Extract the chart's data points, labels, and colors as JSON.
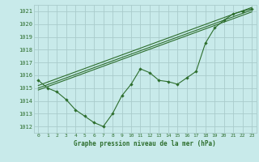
{
  "title": "Graphe pression niveau de la mer (hPa)",
  "background_color": "#c8eaea",
  "grid_color": "#aacccc",
  "line_color": "#2d6e2d",
  "xlim": [
    -0.5,
    23.5
  ],
  "ylim": [
    1011.5,
    1021.5
  ],
  "yticks": [
    1012,
    1013,
    1014,
    1015,
    1016,
    1017,
    1018,
    1019,
    1020,
    1021
  ],
  "xticks": [
    0,
    1,
    2,
    3,
    4,
    5,
    6,
    7,
    8,
    9,
    10,
    11,
    12,
    13,
    14,
    15,
    16,
    17,
    18,
    19,
    20,
    21,
    22,
    23
  ],
  "series1": [
    1015.6,
    1015.0,
    1014.7,
    1014.1,
    1013.3,
    1012.8,
    1012.3,
    1012.0,
    1013.0,
    1014.4,
    1015.3,
    1016.5,
    1016.2,
    1015.6,
    1015.5,
    1015.3,
    1015.8,
    1016.3,
    1018.5,
    1019.7,
    1020.3,
    1020.8,
    1021.0,
    1021.2
  ],
  "series2_x": [
    0,
    23
  ],
  "series2_y": [
    1015.0,
    1021.1
  ],
  "series3_x": [
    0,
    23
  ],
  "series3_y": [
    1014.85,
    1020.95
  ],
  "series4_x": [
    0,
    23
  ],
  "series4_y": [
    1015.2,
    1021.3
  ]
}
